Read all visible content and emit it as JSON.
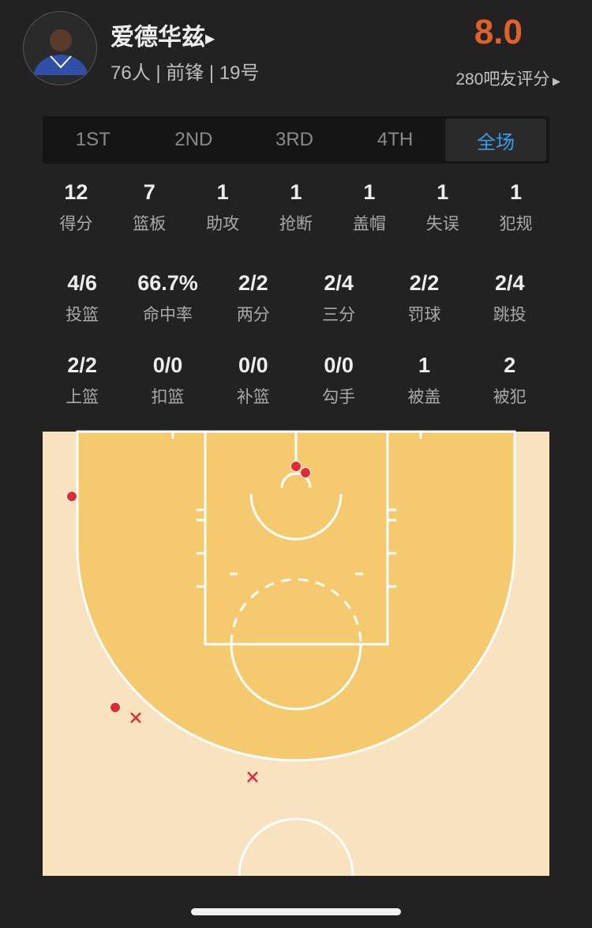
{
  "player": {
    "name": "爱德华兹",
    "info": "76人 | 前锋 | 19号",
    "rating": "8.0",
    "votes": "280吧友评分",
    "rating_color": "#e0622a"
  },
  "tabs": [
    {
      "label": "1ST"
    },
    {
      "label": "2ND"
    },
    {
      "label": "3RD"
    },
    {
      "label": "4TH"
    },
    {
      "label": "全场",
      "active": true
    }
  ],
  "stats_row1": [
    {
      "v": "12",
      "l": "得分"
    },
    {
      "v": "7",
      "l": "篮板"
    },
    {
      "v": "1",
      "l": "助攻"
    },
    {
      "v": "1",
      "l": "抢断"
    },
    {
      "v": "1",
      "l": "盖帽"
    },
    {
      "v": "1",
      "l": "失误"
    },
    {
      "v": "1",
      "l": "犯规"
    }
  ],
  "stats_row2": [
    {
      "v": "4/6",
      "l": "投篮"
    },
    {
      "v": "66.7%",
      "l": "命中率"
    },
    {
      "v": "2/2",
      "l": "两分"
    },
    {
      "v": "2/4",
      "l": "三分"
    },
    {
      "v": "2/2",
      "l": "罚球"
    },
    {
      "v": "2/4",
      "l": "跳投"
    }
  ],
  "stats_row3": [
    {
      "v": "2/2",
      "l": "上篮"
    },
    {
      "v": "0/0",
      "l": "扣篮"
    },
    {
      "v": "0/0",
      "l": "补篮"
    },
    {
      "v": "0/0",
      "l": "勾手"
    },
    {
      "v": "1",
      "l": "被盖"
    },
    {
      "v": "2",
      "l": "被犯"
    }
  ],
  "shot_chart": {
    "made_count": 4,
    "missed_count": 2,
    "made_color": "#e02a36",
    "accent": "#3d9be9"
  }
}
